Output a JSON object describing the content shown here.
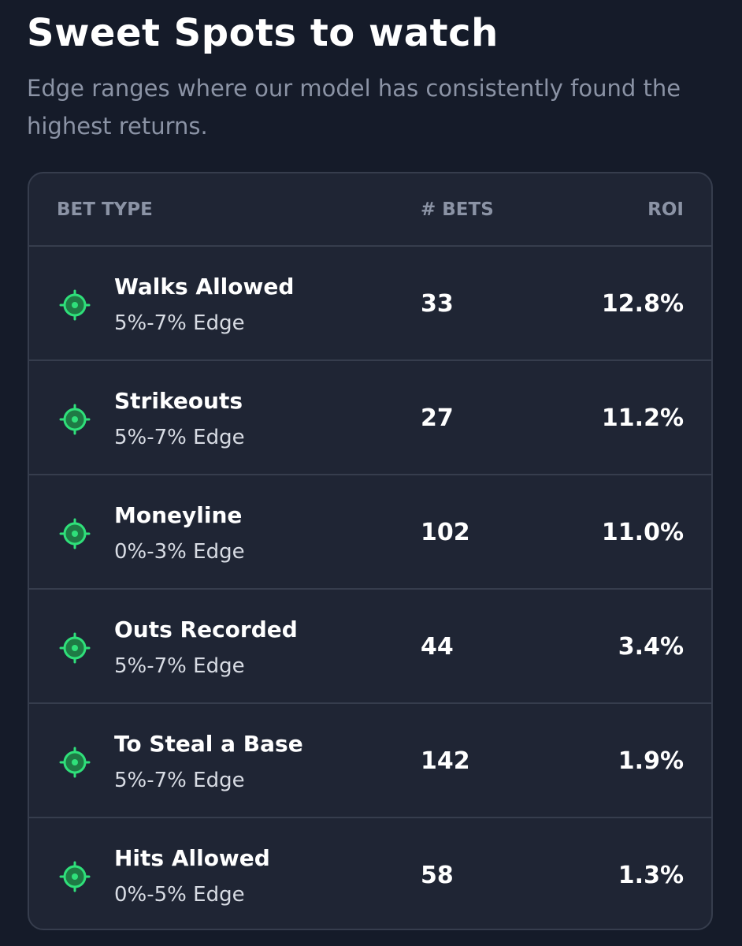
{
  "header": {
    "title": "Sweet Spots to watch",
    "subtitle": "Edge ranges where our model has consistently found the highest returns."
  },
  "table": {
    "columns": [
      "BET TYPE",
      "# BETS",
      "ROI"
    ],
    "rows": [
      {
        "name": "Walks Allowed",
        "edge": "5%-7% Edge",
        "bets": 33,
        "roi": "12.8%"
      },
      {
        "name": "Strikeouts",
        "edge": "5%-7% Edge",
        "bets": 27,
        "roi": "11.2%"
      },
      {
        "name": "Moneyline",
        "edge": "0%-3% Edge",
        "bets": 102,
        "roi": "11.0%"
      },
      {
        "name": "Outs Recorded",
        "edge": "5%-7% Edge",
        "bets": 44,
        "roi": "3.4%"
      },
      {
        "name": "To Steal a Base",
        "edge": "5%-7% Edge",
        "bets": 142,
        "roi": "1.9%"
      },
      {
        "name": "Hits Allowed",
        "edge": "0%-5% Edge",
        "bets": 58,
        "roi": "1.3%"
      }
    ]
  }
}
